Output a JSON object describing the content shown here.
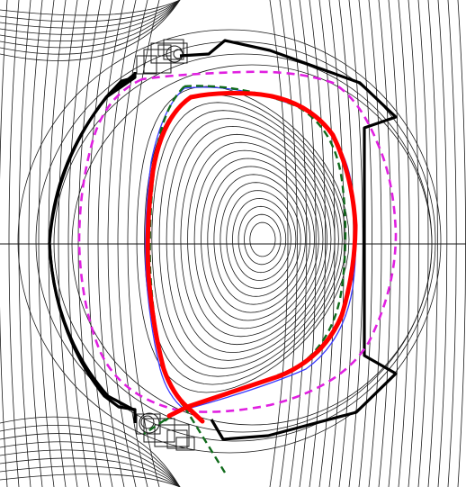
{
  "figure": {
    "kind": "tokamak-equilibrium-cross-section",
    "colors": {
      "background": "#ffffff",
      "flux_contours": "#1a1a1a",
      "vessel_wall": "#000000",
      "separatrix": "#ff0000",
      "inner_flux_surface": "#3a3aff",
      "boundary_dashed_magenta": "#e020e0",
      "boundary_dashed_green": "#0f6a1a"
    },
    "line_styles": {
      "vessel_wall": "solid-thick",
      "separatrix": "solid-very-thick",
      "inner_flux_surface": "solid-thin",
      "boundary_dashed_magenta": "dashed",
      "boundary_dashed_green": "dashed"
    },
    "features": [
      "closed-flux-surfaces",
      "open-field-lines",
      "x-point-lower",
      "divertor-coils-upper",
      "divertor-coils-lower",
      "midplane-line"
    ]
  }
}
